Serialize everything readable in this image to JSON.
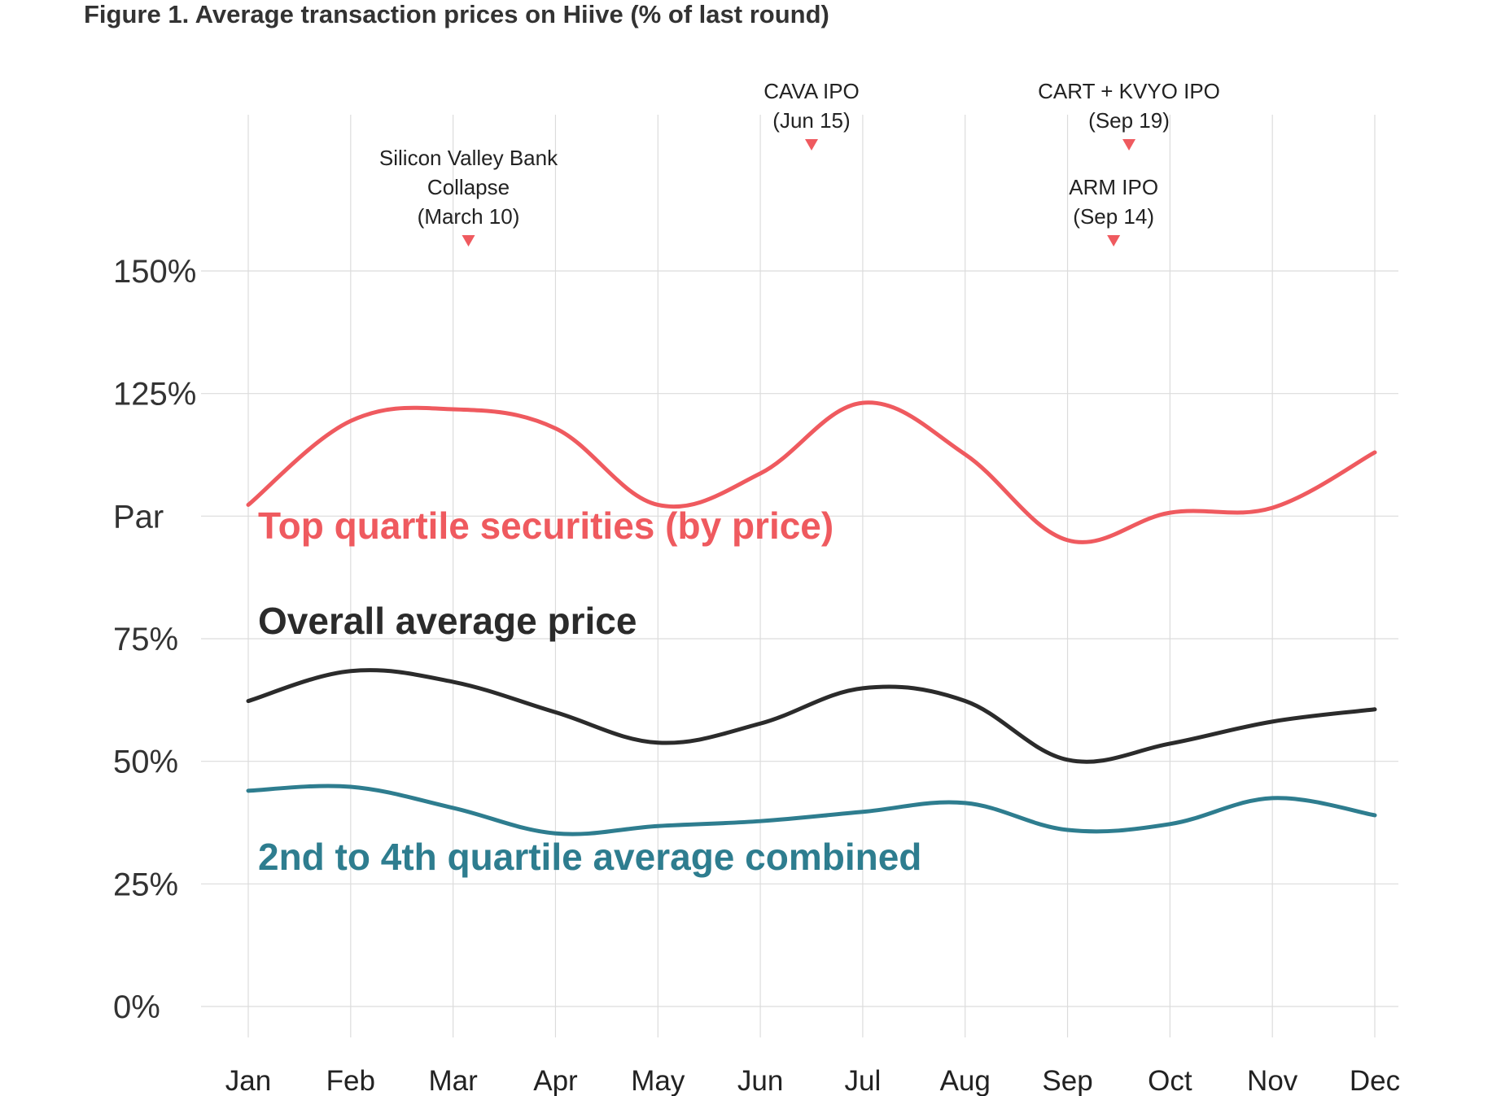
{
  "chart_data": {
    "type": "line",
    "title": "Figure 1. Average transaction prices on Hiive  (% of last round)",
    "xlabel": "",
    "ylabel": "",
    "categories": [
      "Jan",
      "Feb",
      "Mar",
      "Apr",
      "May",
      "Jun",
      "Jul",
      "Aug",
      "Sep",
      "Oct",
      "Nov",
      "Dec"
    ],
    "ylim": [
      0,
      150
    ],
    "yticks": [
      {
        "value": 0,
        "label": "0%"
      },
      {
        "value": 25,
        "label": "25%"
      },
      {
        "value": 50,
        "label": "50%"
      },
      {
        "value": 75,
        "label": "75%"
      },
      {
        "value": 100,
        "label": "Par"
      },
      {
        "value": 125,
        "label": "125%"
      },
      {
        "value": 150,
        "label": "150%"
      }
    ],
    "grid": true,
    "series": [
      {
        "name": "Top quartile securities (by price)",
        "color": "#ef5a5f",
        "values": [
          102.3,
          119.4,
          121.8,
          117.9,
          102.3,
          108.7,
          123.1,
          112.6,
          95.1,
          100.7,
          101.7,
          113.0
        ]
      },
      {
        "name": "Overall average price",
        "color": "#2b2b2b",
        "values": [
          62.3,
          68.4,
          66.2,
          60.0,
          53.8,
          57.7,
          64.9,
          62.3,
          50.3,
          53.6,
          58.1,
          60.6
        ]
      },
      {
        "name": "2nd to 4th quartile average combined",
        "color": "#2e7d8f",
        "values": [
          44.0,
          44.8,
          40.5,
          35.3,
          36.8,
          37.8,
          39.7,
          41.5,
          36.0,
          37.2,
          42.5,
          39.0
        ]
      }
    ],
    "annotations": [
      {
        "lines": [
          "Silicon Valley Bank",
          "Collapse",
          "(March 10)"
        ],
        "month_position": 2.15,
        "level": "low"
      },
      {
        "lines": [
          "CAVA IPO",
          "(Jun 15)"
        ],
        "month_position": 5.5,
        "level": "high"
      },
      {
        "lines": [
          "CART + KVYO IPO",
          "(Sep 19)"
        ],
        "month_position": 8.6,
        "level": "high"
      },
      {
        "lines": [
          "ARM IPO",
          "(Sep 14)"
        ],
        "month_position": 8.45,
        "level": "low"
      }
    ],
    "marker_color": "#ef5a5f"
  }
}
